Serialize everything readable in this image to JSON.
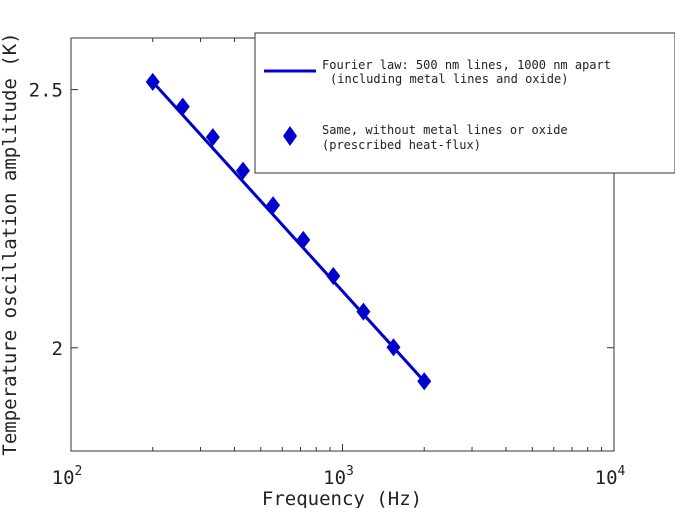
{
  "chart_data": {
    "type": "line",
    "xscale": "log",
    "xlim": [
      100,
      10000
    ],
    "ylim": [
      1.8,
      2.6
    ],
    "xlabel": "Frequency (Hz)",
    "ylabel": "Temperature oscillation amplitude (K)",
    "grid": false,
    "legend_position": "top-right",
    "x_ticks": [
      {
        "value": 100,
        "base": "10",
        "exp": "2"
      },
      {
        "value": 1000,
        "base": "10",
        "exp": "3"
      },
      {
        "value": 10000,
        "base": "10",
        "exp": "4"
      }
    ],
    "y_ticks": [
      {
        "value": 2.0,
        "label": "2"
      },
      {
        "value": 2.5,
        "label": "2.5"
      }
    ],
    "series": [
      {
        "name": "Fourier law: 500 nm lines, 1000 nm apart",
        "name_line2": "(including metal lines and oxide)",
        "style": "line",
        "color": "#0000cc",
        "x": [
          200,
          2000
        ],
        "y": [
          2.515,
          1.935
        ]
      },
      {
        "name": "Same, without metal lines or oxide",
        "name_line2": "(prescribed heat-flux)",
        "style": "marker-diamond",
        "color": "#0000cc",
        "x": [
          200,
          258,
          333,
          430,
          555,
          717,
          925,
          1194,
          1541,
          2000
        ],
        "y": [
          2.515,
          2.467,
          2.408,
          2.343,
          2.276,
          2.209,
          2.139,
          2.07,
          2.001,
          1.935
        ]
      }
    ]
  }
}
